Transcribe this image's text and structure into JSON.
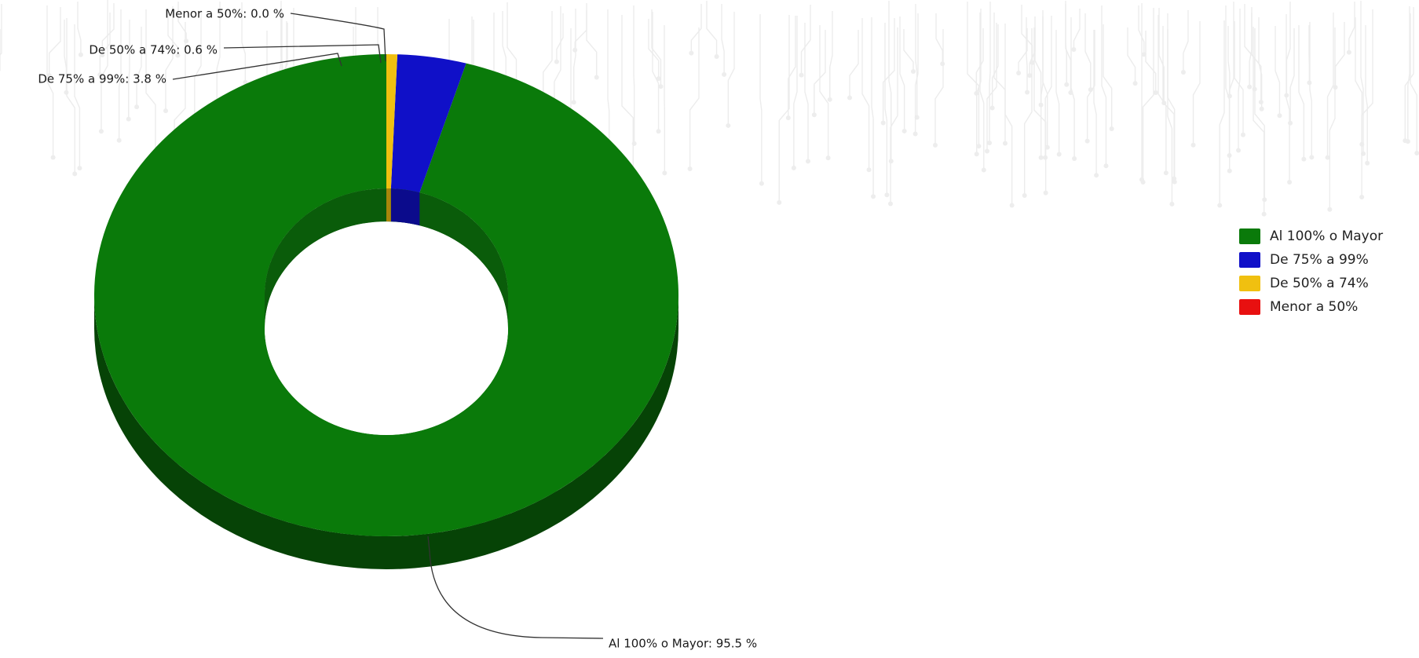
{
  "chart_data": {
    "type": "pie",
    "variant": "donut-3d",
    "series": [
      {
        "name": "Al 100% o Mayor",
        "value": 95.5,
        "color": "#0a7a0a",
        "label": "Al 100% o Mayor: 95.5 %"
      },
      {
        "name": "De 75% a 99%",
        "value": 3.8,
        "color": "#1010c8",
        "label": "De 75% a 99%: 3.8 %"
      },
      {
        "name": "De 50% a 74%",
        "value": 0.6,
        "color": "#f0c010",
        "label": "De 50% a 74%: 0.6 %"
      },
      {
        "name": "Menor a 50%",
        "value": 0.0,
        "color": "#e81010",
        "label": "Menor a 50%: 0.0 %"
      }
    ],
    "legend_position": "right",
    "title": ""
  }
}
